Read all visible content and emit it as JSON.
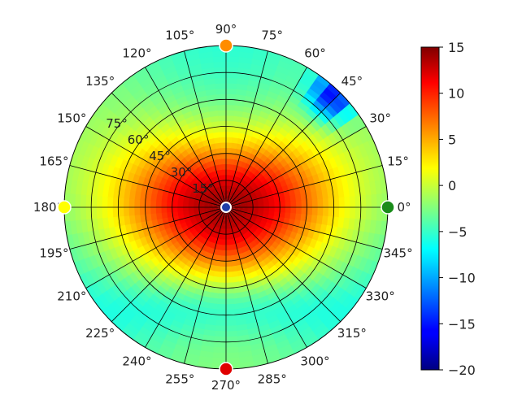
{
  "chart_data": {
    "type": "heatmap",
    "projection": "polar",
    "title": "",
    "angle_ticks": [
      "0°",
      "15°",
      "30°",
      "45°",
      "60°",
      "75°",
      "90°",
      "105°",
      "120°",
      "135°",
      "150°",
      "165°",
      "180°",
      "195°",
      "210°",
      "225°",
      "240°",
      "255°",
      "270°",
      "285°",
      "300°",
      "315°",
      "330°",
      "345°"
    ],
    "radial_ticks": [
      "15°",
      "30°",
      "45°",
      "60°",
      "75°"
    ],
    "radial_range": [
      0,
      90
    ],
    "radial_tick_angle": 143,
    "grid": true,
    "colormap": "jet",
    "colorbar": {
      "vmin": -20,
      "vmax": 15,
      "ticks": [
        15,
        10,
        5,
        0,
        -5,
        -10,
        -15,
        -20
      ],
      "tick_labels": [
        "15",
        "10",
        "5",
        "0",
        "−5",
        "−10",
        "−15",
        "−20"
      ]
    },
    "field_description_values": {
      "center_max": 14,
      "edge_typical": -4,
      "minimum_spot": {
        "azimuth_deg": 46,
        "radius_deg": 85,
        "value": -17
      }
    },
    "markers": [
      {
        "azimuth_deg": 0,
        "color": "#1a8c1a"
      },
      {
        "azimuth_deg": 90,
        "color": "#ff8c00"
      },
      {
        "azimuth_deg": 180,
        "color": "#ffff00"
      },
      {
        "azimuth_deg": 270,
        "color": "#e00000"
      },
      {
        "azimuth_deg": 0,
        "radius_deg": 0,
        "color": "#1f3fa8"
      }
    ]
  }
}
